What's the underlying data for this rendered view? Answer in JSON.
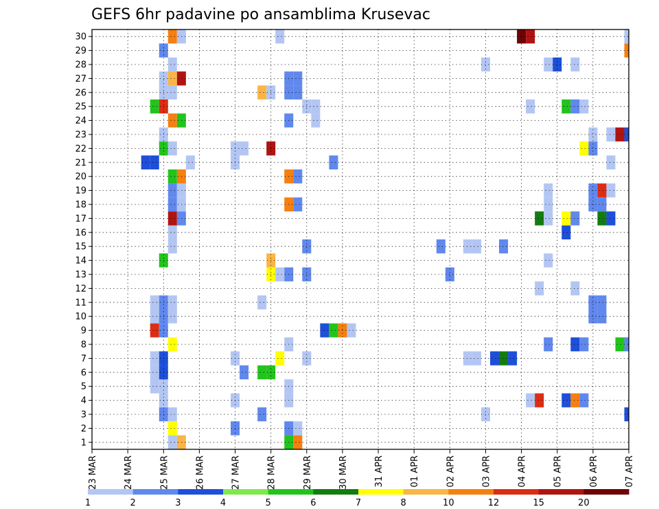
{
  "chart_data": {
    "type": "heatmap",
    "title": "GEFS 6hr padavine po ansamblima Krusevac",
    "xlabel": "",
    "ylabel": "",
    "x_ticks": [
      "23 MAR",
      "24 MAR",
      "25 MAR",
      "26 MAR",
      "27 MAR",
      "28 MAR",
      "29 MAR",
      "30 MAR",
      "31 APR",
      "01 APR",
      "02 APR",
      "03 APR",
      "04 APR",
      "05 APR",
      "06 APR",
      "07 APR"
    ],
    "y_ticks": [
      "1",
      "2",
      "3",
      "4",
      "5",
      "6",
      "7",
      "8",
      "9",
      "10",
      "11",
      "12",
      "13",
      "14",
      "15",
      "16",
      "17",
      "18",
      "19",
      "20",
      "21",
      "22",
      "23",
      "24",
      "25",
      "26",
      "27",
      "28",
      "29",
      "30"
    ],
    "members": [
      1,
      30
    ],
    "time_steps_6h": 61,
    "grid": true,
    "colorbar": {
      "placement": "bottom",
      "labels": [
        "1",
        "2",
        "3",
        "4",
        "5",
        "6",
        "7",
        "8",
        "10",
        "12",
        "15",
        "20"
      ],
      "colors": [
        "#b3c6f3",
        "#6088ed",
        "#1e4fd9",
        "#7ee84e",
        "#22c41c",
        "#137c10",
        "#ffff00",
        "#fbb545",
        "#f57f10",
        "#dc2d14",
        "#b01410",
        "#6c0505"
      ]
    },
    "cells": [
      [
        1,
        "25 MAR 06Z",
        1
      ],
      [
        1,
        "25 MAR 12Z",
        8
      ],
      [
        1,
        "28 MAR 12Z",
        5
      ],
      [
        1,
        "28 MAR 18Z",
        10
      ],
      [
        2,
        "25 MAR 06Z",
        7
      ],
      [
        2,
        "27 MAR 00Z",
        2
      ],
      [
        2,
        "28 MAR 12Z",
        2
      ],
      [
        2,
        "28 MAR 18Z",
        1
      ],
      [
        3,
        "25 MAR 00Z",
        2
      ],
      [
        3,
        "25 MAR 06Z",
        1
      ],
      [
        3,
        "27 MAR 18Z",
        2
      ],
      [
        3,
        "03 APR 00Z",
        1
      ],
      [
        3,
        "07 APR 00Z",
        3
      ],
      [
        4,
        "25 MAR 00Z",
        1
      ],
      [
        4,
        "27 MAR 00Z",
        1
      ],
      [
        4,
        "28 MAR 12Z",
        1
      ],
      [
        4,
        "04 APR 06Z",
        1
      ],
      [
        4,
        "04 APR 12Z",
        12
      ],
      [
        4,
        "05 APR 06Z",
        3
      ],
      [
        4,
        "05 APR 12Z",
        10
      ],
      [
        4,
        "05 APR 18Z",
        2
      ],
      [
        5,
        "24 MAR 18Z",
        1
      ],
      [
        5,
        "25 MAR 00Z",
        1
      ],
      [
        5,
        "28 MAR 12Z",
        1
      ],
      [
        6,
        "24 MAR 18Z",
        1
      ],
      [
        6,
        "25 MAR 00Z",
        3
      ],
      [
        6,
        "27 MAR 06Z",
        2
      ],
      [
        6,
        "27 MAR 18Z",
        5
      ],
      [
        6,
        "28 MAR 00Z",
        5
      ],
      [
        7,
        "24 MAR 18Z",
        1
      ],
      [
        7,
        "25 MAR 00Z",
        3
      ],
      [
        7,
        "27 MAR 00Z",
        1
      ],
      [
        7,
        "28 MAR 06Z",
        7
      ],
      [
        7,
        "29 MAR 00Z",
        1
      ],
      [
        7,
        "02 APR 12Z",
        1
      ],
      [
        7,
        "02 APR 18Z",
        1
      ],
      [
        7,
        "03 APR 06Z",
        3
      ],
      [
        7,
        "03 APR 12Z",
        6
      ],
      [
        7,
        "03 APR 18Z",
        3
      ],
      [
        8,
        "25 MAR 06Z",
        7
      ],
      [
        8,
        "28 MAR 12Z",
        1
      ],
      [
        8,
        "04 APR 18Z",
        2
      ],
      [
        8,
        "05 APR 12Z",
        3
      ],
      [
        8,
        "05 APR 18Z",
        2
      ],
      [
        8,
        "06 APR 18Z",
        5
      ],
      [
        8,
        "07 APR 00Z",
        2
      ],
      [
        9,
        "24 MAR 18Z",
        12
      ],
      [
        9,
        "25 MAR 00Z",
        2
      ],
      [
        9,
        "29 MAR 12Z",
        3
      ],
      [
        9,
        "29 MAR 18Z",
        5
      ],
      [
        9,
        "30 MAR 00Z",
        10
      ],
      [
        9,
        "30 MAR 06Z",
        1
      ],
      [
        10,
        "24 MAR 18Z",
        1
      ],
      [
        10,
        "25 MAR 00Z",
        2
      ],
      [
        10,
        "25 MAR 06Z",
        1
      ],
      [
        10,
        "06 APR 00Z",
        2
      ],
      [
        10,
        "06 APR 06Z",
        2
      ],
      [
        11,
        "24 MAR 18Z",
        1
      ],
      [
        11,
        "25 MAR 00Z",
        2
      ],
      [
        11,
        "25 MAR 06Z",
        1
      ],
      [
        11,
        "06 APR 00Z",
        2
      ],
      [
        11,
        "06 APR 06Z",
        2
      ],
      [
        11,
        "27 MAR 18Z",
        1
      ],
      [
        12,
        "04 APR 12Z",
        1
      ],
      [
        12,
        "05 APR 12Z",
        1
      ],
      [
        13,
        "28 MAR 00Z",
        7
      ],
      [
        13,
        "28 MAR 06Z",
        1
      ],
      [
        13,
        "28 MAR 12Z",
        2
      ],
      [
        13,
        "29 MAR 00Z",
        2
      ],
      [
        13,
        "02 APR 00Z",
        2
      ],
      [
        14,
        "25 MAR 00Z",
        5
      ],
      [
        14,
        "28 MAR 00Z",
        8
      ],
      [
        14,
        "04 APR 18Z",
        1
      ],
      [
        15,
        "25 MAR 06Z",
        1
      ],
      [
        15,
        "29 MAR 00Z",
        2
      ],
      [
        15,
        "01 APR 18Z",
        2
      ],
      [
        15,
        "02 APR 12Z",
        1
      ],
      [
        15,
        "02 APR 18Z",
        1
      ],
      [
        15,
        "03 APR 12Z",
        2
      ],
      [
        16,
        "25 MAR 06Z",
        1
      ],
      [
        16,
        "05 APR 06Z",
        3
      ],
      [
        17,
        "25 MAR 06Z",
        15
      ],
      [
        17,
        "25 MAR 12Z",
        2
      ],
      [
        17,
        "04 APR 12Z",
        6
      ],
      [
        17,
        "04 APR 18Z",
        1
      ],
      [
        17,
        "05 APR 06Z",
        7
      ],
      [
        17,
        "05 APR 12Z",
        2
      ],
      [
        17,
        "06 APR 06Z",
        6
      ],
      [
        17,
        "06 APR 12Z",
        3
      ],
      [
        18,
        "25 MAR 06Z",
        2
      ],
      [
        18,
        "25 MAR 12Z",
        1
      ],
      [
        18,
        "28 MAR 12Z",
        10
      ],
      [
        18,
        "28 MAR 18Z",
        2
      ],
      [
        18,
        "04 APR 18Z",
        1
      ],
      [
        18,
        "06 APR 00Z",
        2
      ],
      [
        18,
        "06 APR 06Z",
        2
      ],
      [
        19,
        "25 MAR 06Z",
        2
      ],
      [
        19,
        "25 MAR 12Z",
        1
      ],
      [
        19,
        "04 APR 18Z",
        1
      ],
      [
        19,
        "06 APR 00Z",
        2
      ],
      [
        19,
        "06 APR 06Z",
        12
      ],
      [
        19,
        "06 APR 12Z",
        1
      ],
      [
        20,
        "25 MAR 06Z",
        5
      ],
      [
        20,
        "25 MAR 12Z",
        10
      ],
      [
        20,
        "28 MAR 12Z",
        10
      ],
      [
        20,
        "28 MAR 18Z",
        2
      ],
      [
        21,
        "24 MAR 12Z",
        3
      ],
      [
        21,
        "24 MAR 18Z",
        3
      ],
      [
        21,
        "25 MAR 18Z",
        1
      ],
      [
        21,
        "27 MAR 00Z",
        1
      ],
      [
        21,
        "29 MAR 18Z",
        2
      ],
      [
        21,
        "06 APR 12Z",
        1
      ],
      [
        22,
        "25 MAR 00Z",
        5
      ],
      [
        22,
        "25 MAR 06Z",
        1
      ],
      [
        22,
        "27 MAR 00Z",
        1
      ],
      [
        22,
        "27 MAR 06Z",
        1
      ],
      [
        22,
        "28 MAR 00Z",
        15
      ],
      [
        22,
        "05 APR 18Z",
        7
      ],
      [
        22,
        "06 APR 00Z",
        2
      ],
      [
        23,
        "25 MAR 00Z",
        1
      ],
      [
        23,
        "06 APR 00Z",
        1
      ],
      [
        23,
        "06 APR 12Z",
        1
      ],
      [
        23,
        "06 APR 18Z",
        15
      ],
      [
        23,
        "07 APR 00Z",
        3
      ],
      [
        24,
        "25 MAR 06Z",
        10
      ],
      [
        24,
        "25 MAR 12Z",
        5
      ],
      [
        24,
        "28 MAR 12Z",
        2
      ],
      [
        24,
        "29 MAR 06Z",
        1
      ],
      [
        25,
        "24 MAR 18Z",
        5
      ],
      [
        25,
        "25 MAR 00Z",
        12
      ],
      [
        25,
        "29 MAR 00Z",
        1
      ],
      [
        25,
        "29 MAR 06Z",
        1
      ],
      [
        25,
        "04 APR 06Z",
        1
      ],
      [
        25,
        "05 APR 06Z",
        5
      ],
      [
        25,
        "05 APR 12Z",
        2
      ],
      [
        25,
        "05 APR 18Z",
        1
      ],
      [
        26,
        "25 MAR 00Z",
        1
      ],
      [
        26,
        "25 MAR 06Z",
        1
      ],
      [
        26,
        "27 MAR 18Z",
        8
      ],
      [
        26,
        "28 MAR 00Z",
        1
      ],
      [
        26,
        "28 MAR 12Z",
        2
      ],
      [
        26,
        "28 MAR 18Z",
        2
      ],
      [
        27,
        "25 MAR 00Z",
        1
      ],
      [
        27,
        "25 MAR 06Z",
        8
      ],
      [
        27,
        "25 MAR 12Z",
        15
      ],
      [
        27,
        "28 MAR 12Z",
        2
      ],
      [
        27,
        "28 MAR 18Z",
        2
      ],
      [
        28,
        "25 MAR 06Z",
        1
      ],
      [
        28,
        "03 APR 00Z",
        1
      ],
      [
        28,
        "04 APR 18Z",
        1
      ],
      [
        28,
        "05 APR 00Z",
        3
      ],
      [
        28,
        "05 APR 12Z",
        1
      ],
      [
        29,
        "25 MAR 00Z",
        2
      ],
      [
        29,
        "07 APR 00Z",
        10
      ],
      [
        30,
        "25 MAR 06Z",
        10
      ],
      [
        30,
        "25 MAR 12Z",
        1
      ],
      [
        30,
        "28 MAR 06Z",
        1
      ],
      [
        30,
        "04 APR 00Z",
        20
      ],
      [
        30,
        "04 APR 06Z",
        15
      ],
      [
        30,
        "07 APR 00Z",
        1
      ]
    ]
  }
}
